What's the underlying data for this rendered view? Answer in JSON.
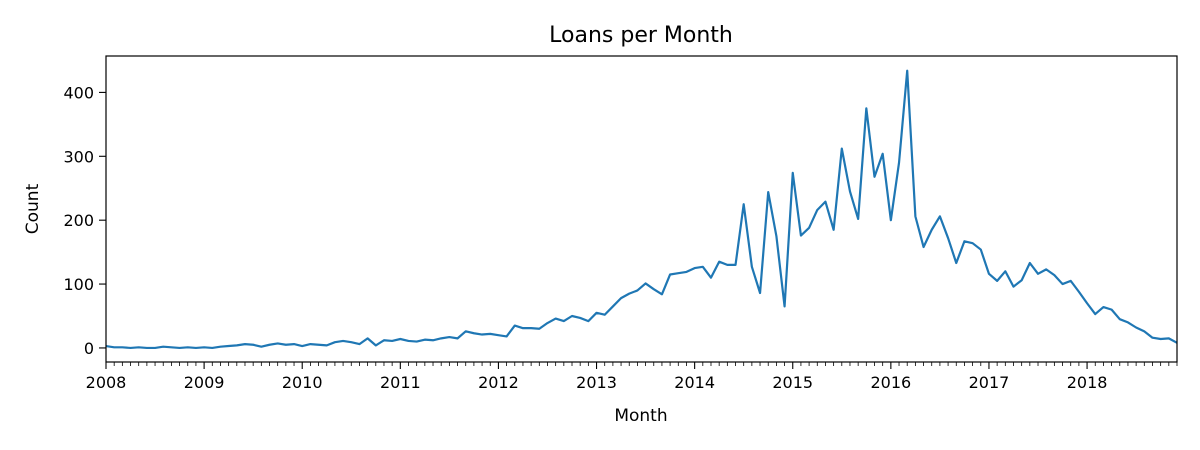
{
  "chart_data": {
    "type": "line",
    "title": "Loans per Month",
    "xlabel": "Month",
    "ylabel": "Count",
    "color": "#1f77b4",
    "grid": false,
    "legend": "none",
    "xlim": [
      "2008-01",
      "2018-12"
    ],
    "ylim": [
      -22,
      457
    ],
    "x_ticks": [
      "2008",
      "2009",
      "2010",
      "2011",
      "2012",
      "2013",
      "2014",
      "2015",
      "2016",
      "2017",
      "2018"
    ],
    "y_ticks": [
      0,
      100,
      200,
      300,
      400
    ],
    "x": [
      "2008-01",
      "2008-02",
      "2008-03",
      "2008-04",
      "2008-05",
      "2008-06",
      "2008-07",
      "2008-08",
      "2008-09",
      "2008-10",
      "2008-11",
      "2008-12",
      "2009-01",
      "2009-02",
      "2009-03",
      "2009-04",
      "2009-05",
      "2009-06",
      "2009-07",
      "2009-08",
      "2009-09",
      "2009-10",
      "2009-11",
      "2009-12",
      "2010-01",
      "2010-02",
      "2010-03",
      "2010-04",
      "2010-05",
      "2010-06",
      "2010-07",
      "2010-08",
      "2010-09",
      "2010-10",
      "2010-11",
      "2010-12",
      "2011-01",
      "2011-02",
      "2011-03",
      "2011-04",
      "2011-05",
      "2011-06",
      "2011-07",
      "2011-08",
      "2011-09",
      "2011-10",
      "2011-11",
      "2011-12",
      "2012-01",
      "2012-02",
      "2012-03",
      "2012-04",
      "2012-05",
      "2012-06",
      "2012-07",
      "2012-08",
      "2012-09",
      "2012-10",
      "2012-11",
      "2012-12",
      "2013-01",
      "2013-02",
      "2013-03",
      "2013-04",
      "2013-05",
      "2013-06",
      "2013-07",
      "2013-08",
      "2013-09",
      "2013-10",
      "2013-11",
      "2013-12",
      "2014-01",
      "2014-02",
      "2014-03",
      "2014-04",
      "2014-05",
      "2014-06",
      "2014-07",
      "2014-08",
      "2014-09",
      "2014-10",
      "2014-11",
      "2014-12",
      "2015-01",
      "2015-02",
      "2015-03",
      "2015-04",
      "2015-05",
      "2015-06",
      "2015-07",
      "2015-08",
      "2015-09",
      "2015-10",
      "2015-11",
      "2015-12",
      "2016-01",
      "2016-02",
      "2016-03",
      "2016-04",
      "2016-05",
      "2016-06",
      "2016-07",
      "2016-08",
      "2016-09",
      "2016-10",
      "2016-11",
      "2016-12",
      "2017-01",
      "2017-02",
      "2017-03",
      "2017-04",
      "2017-05",
      "2017-06",
      "2017-07",
      "2017-08",
      "2017-09",
      "2017-10",
      "2017-11",
      "2017-12",
      "2018-01",
      "2018-02",
      "2018-03",
      "2018-04",
      "2018-05",
      "2018-06",
      "2018-07",
      "2018-08",
      "2018-09",
      "2018-10",
      "2018-11",
      "2018-12"
    ],
    "series": [
      {
        "values": [
          3,
          1,
          1,
          0,
          1,
          0,
          0,
          2,
          1,
          0,
          1,
          0,
          1,
          0,
          2,
          3,
          4,
          6,
          5,
          2,
          5,
          7,
          5,
          6,
          3,
          6,
          5,
          4,
          9,
          11,
          9,
          6,
          15,
          4,
          12,
          11,
          14,
          11,
          10,
          13,
          12,
          15,
          17,
          15,
          26,
          23,
          21,
          22,
          20,
          18,
          35,
          31,
          31,
          30,
          39,
          46,
          42,
          50,
          47,
          42,
          55,
          52,
          65,
          78,
          85,
          90,
          101,
          92,
          84,
          115,
          117,
          119,
          125,
          127,
          110,
          135,
          130,
          130,
          225,
          127,
          86,
          244,
          175,
          65,
          274,
          176,
          188,
          216,
          229,
          185,
          312,
          245,
          202,
          375,
          268,
          304,
          200,
          290,
          434,
          206,
          158,
          185,
          206,
          172,
          133,
          167,
          164,
          154,
          116,
          105,
          120,
          96,
          106,
          133,
          116,
          123,
          114,
          100,
          105,
          88,
          70,
          53,
          64,
          60,
          45,
          40,
          32,
          26,
          16,
          14,
          15,
          8
        ]
      }
    ]
  }
}
